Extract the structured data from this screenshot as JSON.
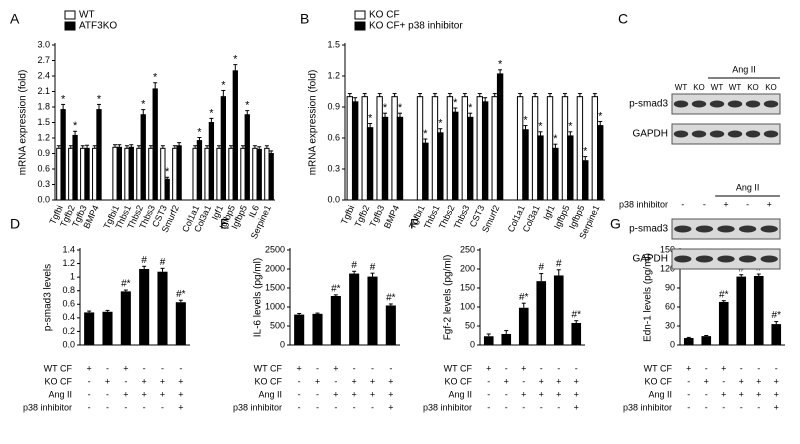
{
  "chart_data": [
    {
      "type": "bar",
      "panel": "A",
      "ylabel": "mRNA expression (fold)",
      "categories": [
        "Tgfbi",
        "Tgfb2",
        "Tgfb3",
        "BMP4",
        "Tgfbi1",
        "Thbs1",
        "Thbs2",
        "Thbs3",
        "CST3",
        "Smurf2",
        "Col1a1",
        "Col3a1",
        "Igf1",
        "Igfbp5",
        "Igfbp5",
        "IL6",
        "Serpine1"
      ],
      "series": [
        {
          "name": "WT",
          "color": "#ffffff",
          "values": [
            1,
            1,
            1,
            1,
            1.02,
            1,
            1,
            1,
            1,
            1,
            1,
            1,
            1,
            1,
            1,
            1,
            1
          ],
          "errors": [
            0.05,
            0.05,
            0.05,
            0.05,
            0.05,
            0.05,
            0.05,
            0.05,
            0.05,
            0.05,
            0.05,
            0.05,
            0.05,
            0.05,
            0.05,
            0.05,
            0.05
          ]
        },
        {
          "name": "ATF3KO",
          "color": "#000000",
          "values": [
            1.75,
            1.25,
            1.0,
            1.75,
            1.02,
            1.02,
            1.65,
            2.15,
            0.4,
            1.05,
            1.15,
            1.5,
            2.0,
            2.5,
            1.65,
            0.98,
            0.9
          ],
          "errors": [
            0.1,
            0.08,
            0.06,
            0.1,
            0.05,
            0.05,
            0.1,
            0.12,
            0.04,
            0.06,
            0.06,
            0.08,
            0.12,
            0.12,
            0.08,
            0.05,
            0.05
          ],
          "annotations": [
            "*",
            "*",
            null,
            "*",
            null,
            null,
            "*",
            "*",
            "*",
            null,
            "*",
            "*",
            "*",
            "*",
            "*",
            null,
            null
          ]
        }
      ],
      "ylim": [
        0,
        3.0
      ],
      "yticks": [
        {
          "value": 0,
          "label": "0.0"
        },
        0.3,
        0.6,
        0.9,
        1.2,
        1.5,
        1.8,
        2.1,
        2.4,
        2.7,
        {
          "value": 3,
          "label": "3.0"
        }
      ]
    },
    {
      "type": "bar",
      "panel": "B",
      "ylabel": "mRNA expression (fold)",
      "categories": [
        "Tgfbi",
        "Tgfb2",
        "Tgfb3",
        "BMP4",
        "Tgfbi1",
        "Thbs1",
        "Thbs2",
        "Thbs3",
        "CST3",
        "Smurf2",
        "Col1a1",
        "Col3a1",
        "Igf1",
        "Igfbp5",
        "Igfbp5",
        "Serpine1"
      ],
      "series": [
        {
          "name": "KO CF",
          "color": "#ffffff",
          "values": [
            1,
            1,
            1,
            1,
            1,
            1,
            1,
            1,
            1,
            1,
            1,
            1,
            1,
            1,
            1,
            1
          ],
          "errors": [
            0.03,
            0.03,
            0.03,
            0.03,
            0.03,
            0.03,
            0.03,
            0.03,
            0.03,
            0.03,
            0.03,
            0.03,
            0.03,
            0.03,
            0.03,
            0.03
          ]
        },
        {
          "name": "KO CF+ p38 inhibitor",
          "color": "#000000",
          "values": [
            0.95,
            0.7,
            0.8,
            0.8,
            0.55,
            0.65,
            0.85,
            0.8,
            0.95,
            1.22,
            0.68,
            0.62,
            0.5,
            0.62,
            0.38,
            0.72
          ],
          "errors": [
            0.04,
            0.04,
            0.04,
            0.04,
            0.04,
            0.04,
            0.04,
            0.04,
            0.04,
            0.04,
            0.04,
            0.04,
            0.04,
            0.04,
            0.04,
            0.04
          ],
          "annotations": [
            null,
            "*",
            "*",
            "*",
            "*",
            "*",
            "*",
            "*",
            null,
            "*",
            "*",
            "*",
            "*",
            "*",
            "*",
            "*"
          ]
        }
      ],
      "ylim": [
        0,
        1.5
      ],
      "yticks": [
        {
          "value": 0,
          "label": "0.0"
        },
        0.3,
        0.6,
        0.9,
        1.2,
        1.5
      ]
    },
    {
      "type": "bar",
      "panel": "D",
      "ylabel": "p-smad3 levels",
      "color": "#000000",
      "values": [
        0.48,
        0.49,
        0.79,
        1.12,
        1.08,
        0.63
      ],
      "errors": [
        0.02,
        0.02,
        0.02,
        0.04,
        0.05,
        0.03
      ],
      "annotations": [
        null,
        null,
        "#*",
        "#",
        "#",
        "#*"
      ],
      "ylim": [
        0,
        1.4
      ],
      "yticks": [
        {
          "value": 0,
          "label": "0.0"
        },
        0.2,
        0.4,
        0.6,
        0.8,
        1.0,
        1.2,
        1.4
      ],
      "conditions": [
        {
          "name": "WT CF",
          "values": [
            "+",
            "-",
            "+",
            "-",
            "-",
            "-"
          ]
        },
        {
          "name": "KO CF",
          "values": [
            "-",
            "+",
            "-",
            "+",
            "+",
            "+"
          ]
        },
        {
          "name": "Ang II",
          "values": [
            "-",
            "-",
            "+",
            "+",
            "+",
            "+"
          ]
        },
        {
          "name": "p38 inhibitor",
          "values": [
            "-",
            "-",
            "-",
            "-",
            "-",
            "+"
          ]
        }
      ]
    },
    {
      "type": "bar",
      "panel": "E",
      "ylabel": "IL-6 levels (pg/ml)",
      "color": "#000000",
      "values": [
        800,
        820,
        1290,
        1880,
        1800,
        1040
      ],
      "errors": [
        30,
        20,
        30,
        60,
        90,
        40
      ],
      "annotations": [
        null,
        null,
        "#*",
        "#",
        "#",
        "#*"
      ],
      "ylim": [
        0,
        2500
      ],
      "yticks": [
        0,
        500,
        1000,
        1500,
        2000,
        2500
      ],
      "conditions": [
        {
          "name": "WT CF",
          "values": [
            "+",
            "-",
            "+",
            "-",
            "-",
            "-"
          ]
        },
        {
          "name": "KO CF",
          "values": [
            "-",
            "+",
            "-",
            "+",
            "+",
            "+"
          ]
        },
        {
          "name": "Ang II",
          "values": [
            "-",
            "-",
            "+",
            "+",
            "+",
            "+"
          ]
        },
        {
          "name": "p38 inhibitor",
          "values": [
            "-",
            "-",
            "-",
            "-",
            "-",
            "+"
          ]
        }
      ]
    },
    {
      "type": "bar",
      "panel": "F",
      "ylabel": "Fgf-2 levels (pg/ml)",
      "color": "#000000",
      "values": [
        23,
        29,
        98,
        168,
        183,
        58
      ],
      "errors": [
        6,
        9,
        12,
        20,
        15,
        6
      ],
      "annotations": [
        null,
        null,
        "#*",
        "#",
        "#",
        "#*"
      ],
      "ylim": [
        0,
        250
      ],
      "yticks": [
        0,
        50,
        100,
        150,
        200,
        250
      ],
      "conditions": [
        {
          "name": "WT CF",
          "values": [
            "+",
            "-",
            "+",
            "-",
            "-",
            "-"
          ]
        },
        {
          "name": "KO CF",
          "values": [
            "-",
            "+",
            "-",
            "+",
            "+",
            "+"
          ]
        },
        {
          "name": "Ang II",
          "values": [
            "-",
            "-",
            "+",
            "+",
            "+",
            "+"
          ]
        },
        {
          "name": "p38 inhibitor",
          "values": [
            "-",
            "-",
            "-",
            "-",
            "-",
            "+"
          ]
        }
      ]
    },
    {
      "type": "bar",
      "panel": "G",
      "ylabel": "Edn-1 levels (pg/ml)",
      "color": "#000000",
      "values": [
        11,
        14,
        68,
        108,
        109,
        33
      ],
      "errors": [
        1,
        1,
        2,
        3,
        3,
        4
      ],
      "annotations": [
        null,
        null,
        "#*",
        "#",
        "#",
        "#*"
      ],
      "ylim": [
        0,
        150
      ],
      "yticks": [
        0,
        30,
        60,
        90,
        120,
        150
      ],
      "conditions": [
        {
          "name": "WT CF",
          "values": [
            "+",
            "-",
            "+",
            "-",
            "-",
            "-"
          ]
        },
        {
          "name": "KO CF",
          "values": [
            "-",
            "+",
            "-",
            "+",
            "+",
            "+"
          ]
        },
        {
          "name": "Ang II",
          "values": [
            "-",
            "-",
            "+",
            "+",
            "+",
            "+"
          ]
        },
        {
          "name": "p38 inhibitor",
          "values": [
            "-",
            "-",
            "-",
            "-",
            "-",
            "+"
          ]
        }
      ]
    }
  ],
  "blots": {
    "panel": "C",
    "top": {
      "lanes": [
        "WT",
        "KO",
        "WT",
        "WT",
        "KO",
        "KO"
      ],
      "treatment": "Ang II",
      "rows": [
        "p-smad3",
        "GAPDH"
      ]
    },
    "bottom": {
      "treatment": "Ang II",
      "inhibitor_label": "p38 inhibitor",
      "lanes": [
        "-",
        "-",
        "+",
        "-",
        "+"
      ],
      "rows": [
        "p-smad3",
        "GAPDH"
      ]
    }
  }
}
